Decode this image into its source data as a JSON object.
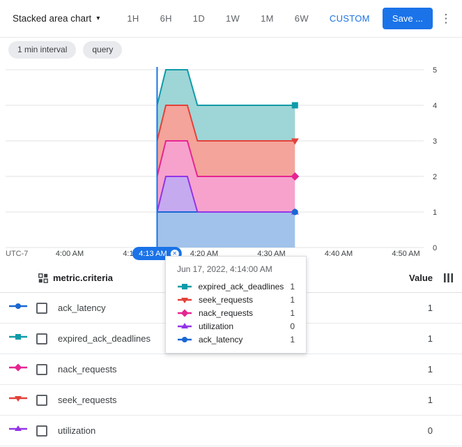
{
  "icons": {
    "kebab": "⋮",
    "caret": "▾",
    "close": "✕"
  },
  "toolbar": {
    "chart_type_label": "Stacked area chart",
    "ranges": [
      "1H",
      "6H",
      "1D",
      "1W",
      "1M",
      "6W"
    ],
    "custom_label": "CUSTOM",
    "save_label": "Save ...",
    "accent_color": "#1a73e8"
  },
  "chips": [
    "1 min interval",
    "query"
  ],
  "chart_data": {
    "type": "area",
    "stacked": true,
    "x": [
      13,
      14.3,
      17.5,
      19,
      33.5
    ],
    "x_ticks": [
      {
        "t": 0,
        "label": "4:00 AM"
      },
      {
        "t": 10,
        "label": "4:10 AM"
      },
      {
        "t": 20,
        "label": "4:20 AM"
      },
      {
        "t": 30,
        "label": "4:30 AM"
      },
      {
        "t": 40,
        "label": "4:40 AM"
      },
      {
        "t": 50,
        "label": "4:50 AM"
      }
    ],
    "utc_label": "UTC-7",
    "ylim": [
      0,
      5
    ],
    "yticks": [
      0,
      1,
      2,
      3,
      4,
      5
    ],
    "grid": true,
    "legend_position": "table-below",
    "series": [
      {
        "name": "ack_latency",
        "marker": "circle",
        "color": "#1967d2",
        "fill": "#a1c2ea",
        "values": [
          1,
          1,
          1,
          1,
          1
        ]
      },
      {
        "name": "utilization",
        "marker": "triangle-up",
        "color": "#9334e6",
        "fill": "#c5aaf0",
        "values": [
          0,
          1,
          1,
          0,
          0
        ]
      },
      {
        "name": "nack_requests",
        "marker": "diamond",
        "color": "#e52592",
        "fill": "#f6a2cd",
        "values": [
          1,
          1,
          1,
          1,
          1
        ]
      },
      {
        "name": "seek_requests",
        "marker": "triangle-down",
        "color": "#e3413a",
        "fill": "#f4a49a",
        "values": [
          1,
          1,
          1,
          1,
          1
        ]
      },
      {
        "name": "expired_ack_deadlines",
        "marker": "square",
        "color": "#0f9ba8",
        "fill": "#9ed5d6",
        "values": [
          1,
          1,
          1,
          1,
          1
        ]
      }
    ],
    "crosshair": {
      "t": 13,
      "label": "4:13 AM"
    }
  },
  "tooltip": {
    "title": "Jun 17, 2022, 4:14:00 AM",
    "rows": [
      {
        "series": "expired_ack_deadlines",
        "value": "1"
      },
      {
        "series": "seek_requests",
        "value": "1"
      },
      {
        "series": "nack_requests",
        "value": "1"
      },
      {
        "series": "utilization",
        "value": "0"
      },
      {
        "series": "ack_latency",
        "value": "1"
      }
    ]
  },
  "table": {
    "metric_header": "metric.criteria",
    "value_header": "Value",
    "rows": [
      {
        "series": "ack_latency",
        "name": "ack_latency",
        "value": "1"
      },
      {
        "series": "expired_ack_deadlines",
        "name": "expired_ack_deadlines",
        "value": "1"
      },
      {
        "series": "nack_requests",
        "name": "nack_requests",
        "value": "1"
      },
      {
        "series": "seek_requests",
        "name": "seek_requests",
        "value": "1"
      },
      {
        "series": "utilization",
        "name": "utilization",
        "value": "0"
      }
    ]
  }
}
